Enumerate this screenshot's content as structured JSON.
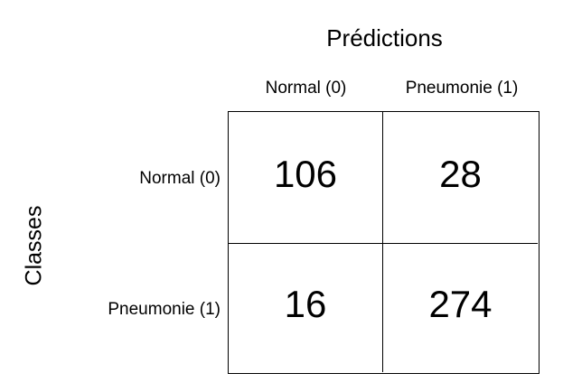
{
  "chart_data": {
    "type": "heatmap",
    "title": "Prédictions",
    "ylabel": "Classes",
    "x_categories": [
      "Normal (0)",
      "Pneumonie (1)"
    ],
    "y_categories": [
      "Normal (0)",
      "Pneumonie (1)"
    ],
    "values": [
      [
        106,
        28
      ],
      [
        16,
        274
      ]
    ],
    "cell_color": "#ffffff",
    "grid_color": "#000000"
  }
}
